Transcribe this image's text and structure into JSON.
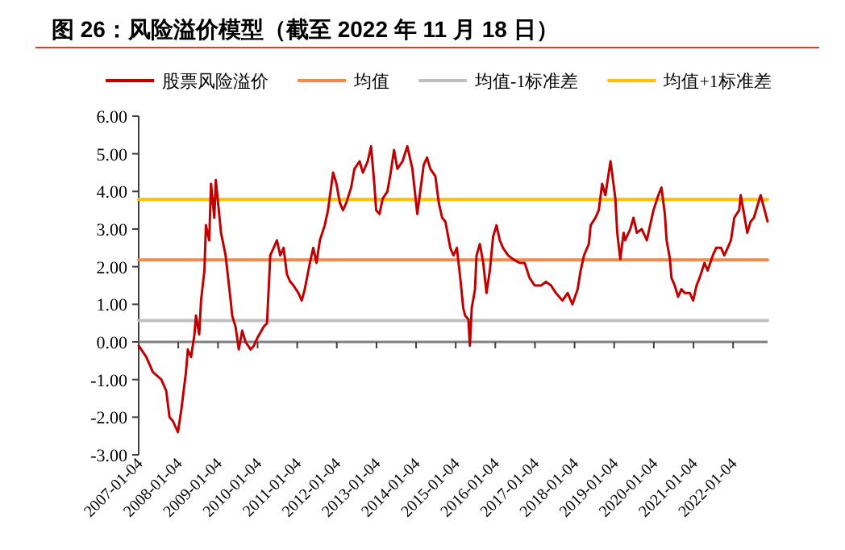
{
  "chart_data": {
    "type": "line",
    "title": "图 26：风险溢价模型（截至 2022 年 11 月 18 日）",
    "legend": "top",
    "marker": "none",
    "line_style": "solid",
    "xlim": [
      "2007-01-04",
      "2022-11-18"
    ],
    "xticks": [
      "2007-01-04",
      "2008-01-04",
      "2009-01-04",
      "2010-01-04",
      "2011-01-04",
      "2012-01-04",
      "2013-01-04",
      "2014-01-04",
      "2015-01-04",
      "2016-01-04",
      "2017-01-04",
      "2018-01-04",
      "2019-01-04",
      "2020-01-04",
      "2021-01-04",
      "2022-01-04"
    ],
    "ylim": [
      -3,
      6
    ],
    "yticks": [
      {
        "value": 6,
        "label": "6.00"
      },
      {
        "value": 5,
        "label": "5.00"
      },
      {
        "value": 4,
        "label": "4.00"
      },
      {
        "value": 3,
        "label": "3.00"
      },
      {
        "value": 2,
        "label": "2.00"
      },
      {
        "value": 1,
        "label": "1.00"
      },
      {
        "value": 0,
        "label": "0.00"
      },
      {
        "value": -1,
        "label": "-1.00"
      },
      {
        "value": -2,
        "label": "-2.00"
      },
      {
        "value": -3,
        "label": "-3.00"
      }
    ],
    "series": [
      {
        "name": "股票风险溢价",
        "color": "#c00000",
        "x": [
          "2007-01-04",
          "2007-03-15",
          "2007-05-15",
          "2007-08-01",
          "2007-09-15",
          "2007-10-15",
          "2007-11-15",
          "2008-01-01",
          "2008-02-01",
          "2008-03-15",
          "2008-04-01",
          "2008-05-01",
          "2008-06-01",
          "2008-06-15",
          "2008-07-15",
          "2008-08-01",
          "2008-09-01",
          "2008-09-15",
          "2008-10-15",
          "2008-11-01",
          "2008-12-01",
          "2008-12-15",
          "2009-01-15",
          "2009-02-01",
          "2009-03-15",
          "2009-05-01",
          "2009-05-15",
          "2009-06-15",
          "2009-07-15",
          "2009-08-15",
          "2009-09-15",
          "2009-11-01",
          "2009-12-01",
          "2010-01-01",
          "2010-03-01",
          "2010-04-01",
          "2010-05-01",
          "2010-06-01",
          "2010-07-01",
          "2010-08-01",
          "2010-09-01",
          "2010-10-01",
          "2010-11-01",
          "2010-12-01",
          "2011-01-15",
          "2011-02-15",
          "2011-03-15",
          "2011-05-01",
          "2011-06-01",
          "2011-07-01",
          "2011-08-01",
          "2011-09-15",
          "2011-10-15",
          "2011-12-01",
          "2012-01-01",
          "2012-02-01",
          "2012-03-01",
          "2012-04-01",
          "2012-05-15",
          "2012-06-15",
          "2012-08-01",
          "2012-09-01",
          "2012-10-15",
          "2012-11-15",
          "2012-12-15",
          "2013-01-01",
          "2013-02-01",
          "2013-03-01",
          "2013-04-15",
          "2013-05-15",
          "2013-06-15",
          "2013-07-15",
          "2013-09-01",
          "2013-10-15",
          "2013-12-01",
          "2014-01-15",
          "2014-03-15",
          "2014-04-15",
          "2014-05-15",
          "2014-07-01",
          "2014-08-01",
          "2014-09-01",
          "2014-10-01",
          "2014-11-15",
          "2014-12-15",
          "2015-01-15",
          "2015-02-15",
          "2015-03-15",
          "2015-04-01",
          "2015-05-01",
          "2015-05-15",
          "2015-06-01",
          "2015-07-01",
          "2015-07-15",
          "2015-08-15",
          "2015-09-15",
          "2015-10-15",
          "2015-11-15",
          "2015-12-15",
          "2016-01-15",
          "2016-02-15",
          "2016-03-15",
          "2016-05-01",
          "2016-06-15",
          "2016-08-15",
          "2016-10-01",
          "2016-11-15",
          "2017-01-01",
          "2017-03-01",
          "2017-04-15",
          "2017-06-01",
          "2017-07-15",
          "2017-09-15",
          "2017-11-01",
          "2017-12-15",
          "2018-02-01",
          "2018-03-01",
          "2018-04-01",
          "2018-05-15",
          "2018-06-01",
          "2018-07-15",
          "2018-08-15",
          "2018-09-15",
          "2018-10-15",
          "2018-12-01",
          "2018-12-15",
          "2019-01-15",
          "2019-02-01",
          "2019-03-01",
          "2019-04-01",
          "2019-04-15",
          "2019-06-01",
          "2019-07-01",
          "2019-08-01",
          "2019-09-15",
          "2019-11-01",
          "2019-12-01",
          "2020-01-01",
          "2020-02-15",
          "2020-03-15",
          "2020-04-15",
          "2020-05-01",
          "2020-06-01",
          "2020-06-15",
          "2020-07-15",
          "2020-08-15",
          "2020-09-15",
          "2020-10-15",
          "2020-12-01",
          "2021-01-01",
          "2021-02-01",
          "2021-03-01",
          "2021-04-15",
          "2021-05-15",
          "2021-07-01",
          "2021-08-01",
          "2021-09-15",
          "2021-10-15",
          "2021-11-15",
          "2021-12-15",
          "2022-01-15",
          "2022-03-01",
          "2022-03-15",
          "2022-04-15",
          "2022-05-15",
          "2022-06-15",
          "2022-07-15",
          "2022-08-15",
          "2022-09-15",
          "2022-11-18"
        ],
        "values": [
          -0.1,
          -0.4,
          -0.8,
          -1.0,
          -1.3,
          -2.0,
          -2.1,
          -2.4,
          -1.8,
          -0.8,
          -0.2,
          -0.4,
          0.2,
          0.7,
          0.2,
          1.1,
          1.9,
          3.1,
          2.7,
          4.2,
          3.3,
          4.3,
          3.4,
          2.9,
          2.3,
          1.1,
          0.7,
          0.4,
          -0.2,
          0.3,
          0.0,
          -0.2,
          -0.1,
          0.1,
          0.4,
          0.5,
          2.3,
          2.5,
          2.7,
          2.3,
          2.5,
          1.8,
          1.6,
          1.5,
          1.3,
          1.1,
          1.4,
          2.1,
          2.5,
          2.1,
          2.7,
          3.1,
          3.5,
          4.5,
          4.2,
          3.7,
          3.5,
          3.7,
          4.1,
          4.6,
          4.8,
          4.5,
          4.8,
          5.2,
          4.2,
          3.5,
          3.4,
          3.8,
          4.0,
          4.5,
          5.1,
          4.6,
          4.8,
          5.2,
          4.6,
          3.4,
          4.7,
          4.9,
          4.6,
          4.4,
          3.7,
          3.3,
          3.2,
          2.5,
          2.3,
          2.5,
          1.7,
          0.9,
          0.7,
          0.6,
          -0.1,
          0.9,
          1.4,
          2.3,
          2.6,
          2.1,
          1.3,
          1.9,
          2.8,
          3.1,
          2.7,
          2.5,
          2.3,
          2.2,
          2.1,
          2.1,
          1.7,
          1.5,
          1.5,
          1.6,
          1.5,
          1.3,
          1.1,
          1.3,
          1.0,
          1.4,
          1.9,
          2.3,
          2.6,
          3.1,
          3.3,
          3.5,
          4.2,
          3.9,
          4.8,
          4.5,
          3.8,
          2.9,
          2.2,
          2.9,
          2.7,
          3.0,
          3.3,
          2.9,
          3.0,
          2.7,
          3.1,
          3.5,
          3.9,
          4.1,
          3.4,
          2.7,
          2.2,
          1.7,
          1.5,
          1.2,
          1.4,
          1.3,
          1.3,
          1.1,
          1.5,
          1.7,
          2.1,
          1.9,
          2.3,
          2.5,
          2.5,
          2.3,
          2.5,
          2.7,
          3.3,
          3.5,
          3.9,
          3.4,
          2.9,
          3.2,
          3.3,
          3.6,
          3.9,
          3.2
        ]
      },
      {
        "name": "均值",
        "color": "#f4894a",
        "x": [
          "2007-01-04",
          "2022-11-18"
        ],
        "values": [
          2.18,
          2.18
        ]
      },
      {
        "name": "均值-1标准差",
        "color": "#bfbfbf",
        "x": [
          "2007-01-04",
          "2022-11-18"
        ],
        "values": [
          0.57,
          0.57
        ]
      },
      {
        "name": "均值+1标准差",
        "color": "#ffc000",
        "x": [
          "2007-01-04",
          "2022-11-18"
        ],
        "values": [
          3.79,
          3.79
        ]
      }
    ]
  }
}
